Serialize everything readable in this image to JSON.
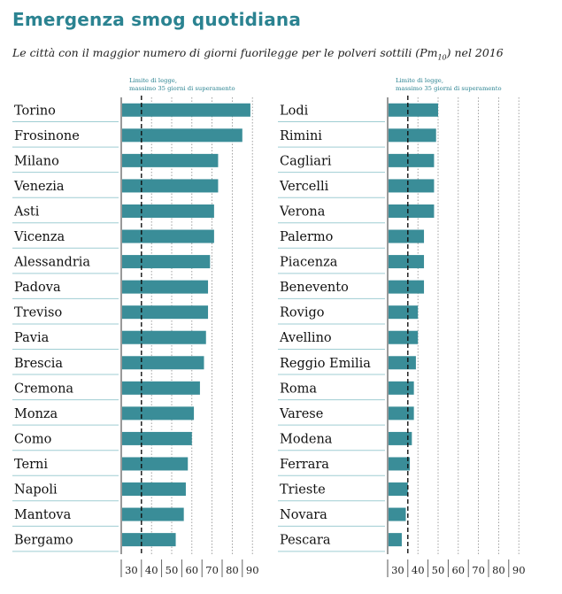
{
  "title": "Emergenza smog quotidiana",
  "subtitle": {
    "before": "Le città con il maggior numero di giorni fuorilegge per le polveri sottili (Pm",
    "sub": "10",
    "after": ") nel 2016"
  },
  "colors": {
    "bar": "#3a8d98",
    "title": "#2b8391",
    "limit_text": "#2b8391",
    "rule": "#9fcdd3"
  },
  "chart_data": [
    {
      "type": "bar",
      "orientation": "horizontal",
      "categories": [
        "Torino",
        "Frosinone",
        "Milano",
        "Venezia",
        "Asti",
        "Vicenza",
        "Alessandria",
        "Padova",
        "Treviso",
        "Pavia",
        "Brescia",
        "Cremona",
        "Monza",
        "Como",
        "Terni",
        "Napoli",
        "Mantova",
        "Bergamo"
      ],
      "values": [
        89,
        85,
        73,
        73,
        71,
        71,
        69,
        68,
        68,
        67,
        66,
        64,
        61,
        60,
        58,
        57,
        56,
        52
      ],
      "xlim": [
        25,
        90
      ],
      "xticks": [
        30,
        40,
        50,
        60,
        70,
        80,
        90
      ],
      "limit_value": 35,
      "limit_label": [
        "Limite di legge,",
        "massimo 35 giorni di superamento"
      ],
      "grid": true
    },
    {
      "type": "bar",
      "orientation": "horizontal",
      "categories": [
        "Lodi",
        "Rimini",
        "Cagliari",
        "Vercelli",
        "Verona",
        "Palermo",
        "Piacenza",
        "Benevento",
        "Rovigo",
        "Avellino",
        "Reggio Emilia",
        "Roma",
        "Varese",
        "Modena",
        "Ferrara",
        "Trieste",
        "Novara",
        "Pescara"
      ],
      "values": [
        50,
        49,
        48,
        48,
        48,
        43,
        43,
        43,
        40,
        40,
        39,
        38,
        38,
        37,
        36,
        35,
        34,
        32
      ],
      "xlim": [
        25,
        90
      ],
      "xticks": [
        30,
        40,
        50,
        60,
        70,
        80,
        90
      ],
      "limit_value": 35,
      "limit_label": [
        "Limite di legge,",
        "massimo 35 giorni di superamento"
      ],
      "grid": true
    }
  ]
}
